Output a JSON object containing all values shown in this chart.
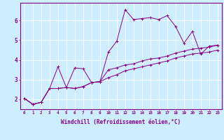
{
  "xlabel": "Windchill (Refroidissement éolien,°C)",
  "ylabel": "",
  "background_color": "#cceeff",
  "line_color": "#880088",
  "grid_color": "#ffffff",
  "xlim": [
    -0.5,
    23.5
  ],
  "ylim": [
    1.5,
    6.9
  ],
  "xticks": [
    0,
    1,
    2,
    3,
    4,
    5,
    6,
    7,
    8,
    9,
    10,
    11,
    12,
    13,
    14,
    15,
    16,
    17,
    18,
    19,
    20,
    21,
    22,
    23
  ],
  "yticks": [
    2,
    3,
    4,
    5,
    6
  ],
  "series1_x": [
    0,
    1,
    2,
    3,
    4,
    5,
    6,
    7,
    8,
    9,
    10,
    11,
    12,
    13,
    14,
    15,
    16,
    17,
    18,
    19,
    20,
    21,
    22,
    23
  ],
  "series1_y": [
    2.05,
    1.75,
    1.85,
    2.55,
    3.65,
    2.6,
    3.6,
    3.55,
    2.85,
    2.9,
    4.4,
    4.95,
    6.55,
    6.05,
    6.1,
    6.15,
    6.05,
    6.25,
    5.7,
    4.85,
    5.45,
    4.3,
    4.7,
    4.75
  ],
  "series2_x": [
    0,
    1,
    2,
    3,
    4,
    5,
    6,
    7,
    8,
    9,
    10,
    11,
    12,
    13,
    14,
    15,
    16,
    17,
    18,
    19,
    20,
    21,
    22,
    23
  ],
  "series2_y": [
    2.05,
    1.75,
    1.85,
    2.55,
    2.55,
    2.6,
    2.55,
    2.65,
    2.85,
    2.9,
    3.5,
    3.6,
    3.75,
    3.8,
    3.95,
    4.05,
    4.1,
    4.2,
    4.35,
    4.45,
    4.55,
    4.6,
    4.65,
    4.75
  ],
  "series3_x": [
    0,
    1,
    2,
    3,
    4,
    5,
    6,
    7,
    8,
    9,
    10,
    11,
    12,
    13,
    14,
    15,
    16,
    17,
    18,
    19,
    20,
    21,
    22,
    23
  ],
  "series3_y": [
    2.05,
    1.75,
    1.85,
    2.55,
    2.55,
    2.6,
    2.55,
    2.65,
    2.85,
    2.9,
    3.1,
    3.25,
    3.45,
    3.55,
    3.65,
    3.75,
    3.85,
    3.95,
    4.1,
    4.2,
    4.3,
    4.35,
    4.4,
    4.5
  ]
}
